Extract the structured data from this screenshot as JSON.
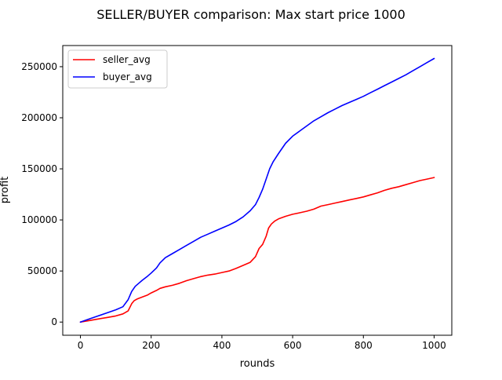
{
  "chart_data": {
    "type": "line",
    "title": "SELLER/BUYER comparison: Max start price 1000",
    "xlabel": "rounds",
    "ylabel": "profit",
    "xlim": [
      -50,
      1050
    ],
    "ylim": [
      -12900,
      270700
    ],
    "xticks": [
      0,
      200,
      400,
      600,
      800,
      1000
    ],
    "yticks": [
      0,
      50000,
      100000,
      150000,
      200000,
      250000
    ],
    "grid": false,
    "legend": "top-left",
    "series": [
      {
        "name": "seller_avg",
        "color": "#ff0000",
        "x": [
          0,
          25,
          50,
          75,
          100,
          120,
          135,
          145,
          152,
          160,
          175,
          190,
          200,
          215,
          225,
          240,
          260,
          280,
          300,
          320,
          340,
          360,
          380,
          400,
          420,
          440,
          460,
          480,
          495,
          505,
          515,
          525,
          532,
          540,
          550,
          560,
          580,
          600,
          620,
          640,
          660,
          680,
          700,
          720,
          740,
          760,
          780,
          800,
          820,
          840,
          860,
          880,
          900,
          920,
          940,
          960,
          980,
          1000
        ],
        "y": [
          0,
          1500,
          3000,
          4500,
          6000,
          8000,
          11000,
          18000,
          21000,
          22500,
          24500,
          26500,
          28500,
          31000,
          33000,
          34500,
          36000,
          38000,
          40500,
          42500,
          44500,
          46000,
          47000,
          48500,
          50000,
          52500,
          55500,
          58500,
          64000,
          72000,
          76000,
          84000,
          92000,
          96000,
          99000,
          101000,
          103500,
          105500,
          107000,
          108500,
          110500,
          113500,
          115000,
          116500,
          118000,
          119500,
          121000,
          122500,
          124500,
          126500,
          129000,
          131000,
          132500,
          134500,
          136500,
          138500,
          140000,
          141500
        ]
      },
      {
        "name": "buyer_avg",
        "color": "#0000ff",
        "x": [
          0,
          25,
          50,
          75,
          100,
          120,
          135,
          145,
          155,
          165,
          175,
          190,
          200,
          215,
          225,
          240,
          260,
          280,
          300,
          320,
          340,
          360,
          380,
          400,
          420,
          440,
          460,
          480,
          495,
          505,
          515,
          525,
          535,
          545,
          560,
          580,
          600,
          620,
          640,
          660,
          680,
          700,
          720,
          740,
          760,
          780,
          800,
          820,
          840,
          860,
          880,
          900,
          920,
          940,
          960,
          980,
          1000
        ],
        "y": [
          0,
          3000,
          6000,
          9000,
          12000,
          15000,
          22000,
          30000,
          35000,
          38000,
          41000,
          45000,
          48000,
          53000,
          58000,
          63000,
          67000,
          71000,
          75000,
          79000,
          83000,
          86000,
          89000,
          92000,
          95000,
          98500,
          103000,
          109000,
          115000,
          122000,
          130000,
          140000,
          150000,
          157000,
          165000,
          175000,
          182000,
          187000,
          192000,
          197000,
          201000,
          205000,
          208500,
          212000,
          215000,
          218000,
          221000,
          224500,
          228000,
          231500,
          235000,
          238500,
          242000,
          246000,
          250000,
          254000,
          258000
        ]
      }
    ]
  }
}
